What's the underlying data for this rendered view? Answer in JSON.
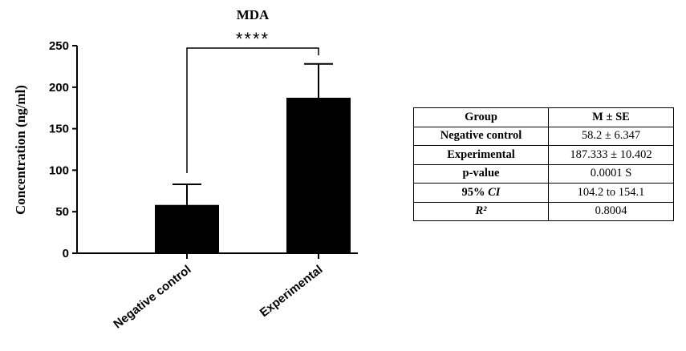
{
  "chart_data": {
    "type": "bar",
    "title": "MDA",
    "xlabel": "",
    "ylabel": "Concentration (ng/ml)",
    "ylim": [
      0,
      250
    ],
    "yticks": [
      0,
      50,
      100,
      150,
      200,
      250
    ],
    "categories": [
      "Negative control",
      "Experimental"
    ],
    "values": [
      58.2,
      187.3
    ],
    "error_upper": [
      83,
      228
    ],
    "bar_color": "#000000",
    "grid": false,
    "significance": {
      "between": [
        "Negative control",
        "Experimental"
      ],
      "label": "****"
    }
  },
  "table": {
    "headers": {
      "group": "Group",
      "value": "M ± SE"
    },
    "rows": [
      {
        "group": "Negative control",
        "value": "58.2 ± 6.347"
      },
      {
        "group": "Experimental",
        "value": "187.333 ± 10.402"
      },
      {
        "group": "p-value",
        "value": "0.0001 S"
      },
      {
        "group": "95% CI",
        "value": "104.2 to 154.1"
      },
      {
        "group": "R²",
        "value": "0.8004"
      }
    ]
  }
}
